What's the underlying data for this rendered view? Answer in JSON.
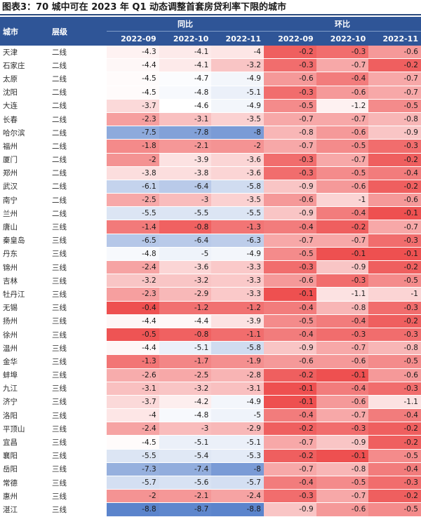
{
  "title": "图表3：70 城中可在 2023 年 Q1 动态调整首套房贷利率下限的城市",
  "headers": {
    "city": "城市",
    "tier": "层级",
    "yoy": "同比",
    "mom": "环比",
    "months": [
      "2022-09",
      "2022-10",
      "2022-11"
    ]
  },
  "colors": {
    "header_bg": "#2f5597",
    "blue_max": "#5b84cc",
    "red_max": "#ee5050"
  },
  "rows": [
    {
      "city": "天津",
      "tier": "二线",
      "yoy": [
        "-4.3",
        "-4.1",
        "-4"
      ],
      "mom": [
        "-0.2",
        "-0.3",
        "-0.6"
      ]
    },
    {
      "city": "石家庄",
      "tier": "二线",
      "yoy": [
        "-4.4",
        "-4.1",
        "-3.2"
      ],
      "mom": [
        "-0.3",
        "-0.7",
        "-0.2"
      ]
    },
    {
      "city": "太原",
      "tier": "二线",
      "yoy": [
        "-4.5",
        "-4.7",
        "-4.9"
      ],
      "mom": [
        "-0.6",
        "-0.4",
        "-0.7"
      ]
    },
    {
      "city": "沈阳",
      "tier": "二线",
      "yoy": [
        "-4.5",
        "-4.8",
        "-5.1"
      ],
      "mom": [
        "-0.3",
        "-0.6",
        "-0.7"
      ]
    },
    {
      "city": "大连",
      "tier": "二线",
      "yoy": [
        "-3.7",
        "-4.6",
        "-4.9"
      ],
      "mom": [
        "-0.5",
        "-1.2",
        "-0.5"
      ]
    },
    {
      "city": "长春",
      "tier": "二线",
      "yoy": [
        "-2.3",
        "-3.1",
        "-3.5"
      ],
      "mom": [
        "-0.7",
        "-0.7",
        "-0.8"
      ]
    },
    {
      "city": "哈尔滨",
      "tier": "二线",
      "yoy": [
        "-7.5",
        "-7.8",
        "-8"
      ],
      "mom": [
        "-0.8",
        "-0.6",
        "-0.9"
      ]
    },
    {
      "city": "福州",
      "tier": "二线",
      "yoy": [
        "-1.8",
        "-2.1",
        "-2"
      ],
      "mom": [
        "-0.7",
        "-0.5",
        "-0.3"
      ]
    },
    {
      "city": "厦门",
      "tier": "二线",
      "yoy": [
        "-2",
        "-3.9",
        "-3.6"
      ],
      "mom": [
        "-0.3",
        "-0.7",
        "-0.2"
      ]
    },
    {
      "city": "郑州",
      "tier": "二线",
      "yoy": [
        "-3.8",
        "-3.8",
        "-3.6"
      ],
      "mom": [
        "-0.3",
        "-0.5",
        "-0.4"
      ]
    },
    {
      "city": "武汉",
      "tier": "二线",
      "yoy": [
        "-6.1",
        "-6.4",
        "-5.8"
      ],
      "mom": [
        "-0.9",
        "-0.6",
        "-0.2"
      ]
    },
    {
      "city": "南宁",
      "tier": "二线",
      "yoy": [
        "-2.5",
        "-3",
        "-3.5"
      ],
      "mom": [
        "-0.6",
        "-1",
        "-0.6"
      ]
    },
    {
      "city": "兰州",
      "tier": "二线",
      "yoy": [
        "-5.5",
        "-5.5",
        "-5.5"
      ],
      "mom": [
        "-0.9",
        "-0.4",
        "-0.1"
      ]
    },
    {
      "city": "唐山",
      "tier": "三线",
      "yoy": [
        "-1.4",
        "-0.8",
        "-1.3"
      ],
      "mom": [
        "-0.4",
        "-0.2",
        "-0.7"
      ]
    },
    {
      "city": "秦皇岛",
      "tier": "三线",
      "yoy": [
        "-6.5",
        "-6.4",
        "-6.3"
      ],
      "mom": [
        "-0.7",
        "-0.7",
        "-0.3"
      ]
    },
    {
      "city": "丹东",
      "tier": "三线",
      "yoy": [
        "-4.8",
        "-5",
        "-4.9"
      ],
      "mom": [
        "-0.5",
        "-0.1",
        "-0.1"
      ]
    },
    {
      "city": "锦州",
      "tier": "三线",
      "yoy": [
        "-2.4",
        "-3.6",
        "-3.3"
      ],
      "mom": [
        "-0.3",
        "-0.9",
        "-0.2"
      ]
    },
    {
      "city": "吉林",
      "tier": "三线",
      "yoy": [
        "-3.2",
        "-3.2",
        "-3.3"
      ],
      "mom": [
        "-0.6",
        "-0.3",
        "-0.5"
      ]
    },
    {
      "city": "牡丹江",
      "tier": "三线",
      "yoy": [
        "-2.3",
        "-2.9",
        "-3.3"
      ],
      "mom": [
        "-0.1",
        "-1.1",
        "-1"
      ]
    },
    {
      "city": "无锡",
      "tier": "三线",
      "yoy": [
        "-0.4",
        "-1.2",
        "-1.2"
      ],
      "mom": [
        "-0.4",
        "-0.8",
        "-0.3"
      ]
    },
    {
      "city": "扬州",
      "tier": "三线",
      "yoy": [
        "-4.4",
        "-4.4",
        "-3.9"
      ],
      "mom": [
        "-0.5",
        "-0.4",
        "-0.2"
      ]
    },
    {
      "city": "徐州",
      "tier": "三线",
      "yoy": [
        "-0.5",
        "-0.8",
        "-1.1"
      ],
      "mom": [
        "-0.4",
        "-0.3",
        "-0.3"
      ]
    },
    {
      "city": "温州",
      "tier": "三线",
      "yoy": [
        "-4.4",
        "-5.1",
        "-5.8"
      ],
      "mom": [
        "-0.9",
        "-0.7",
        "-0.8"
      ]
    },
    {
      "city": "金华",
      "tier": "三线",
      "yoy": [
        "-1.3",
        "-1.7",
        "-1.9"
      ],
      "mom": [
        "-0.6",
        "-0.6",
        "-0.5"
      ]
    },
    {
      "city": "蚌埠",
      "tier": "三线",
      "yoy": [
        "-2.6",
        "-2.5",
        "-2.8"
      ],
      "mom": [
        "-0.2",
        "-0.1",
        "-0.6"
      ]
    },
    {
      "city": "九江",
      "tier": "三线",
      "yoy": [
        "-3.1",
        "-3.2",
        "-3.1"
      ],
      "mom": [
        "-0.1",
        "-0.4",
        "-0.3"
      ]
    },
    {
      "city": "济宁",
      "tier": "三线",
      "yoy": [
        "-3.7",
        "-4.2",
        "-4.9"
      ],
      "mom": [
        "-0.1",
        "-0.6",
        "-1.1"
      ]
    },
    {
      "city": "洛阳",
      "tier": "三线",
      "yoy": [
        "-4",
        "-4.8",
        "-5"
      ],
      "mom": [
        "-0.4",
        "-0.7",
        "-0.4"
      ]
    },
    {
      "city": "平顶山",
      "tier": "三线",
      "yoy": [
        "-2.4",
        "-3",
        "-2.9"
      ],
      "mom": [
        "-0.2",
        "-0.3",
        "-0.2"
      ]
    },
    {
      "city": "宜昌",
      "tier": "三线",
      "yoy": [
        "-4.5",
        "-5.1",
        "-5.1"
      ],
      "mom": [
        "-0.7",
        "-0.9",
        "-0.2"
      ]
    },
    {
      "city": "襄阳",
      "tier": "三线",
      "yoy": [
        "-5.5",
        "-5.4",
        "-5.3"
      ],
      "mom": [
        "-0.2",
        "-0.1",
        "-0.5"
      ]
    },
    {
      "city": "岳阳",
      "tier": "三线",
      "yoy": [
        "-7.3",
        "-7.4",
        "-8"
      ],
      "mom": [
        "-0.7",
        "-0.8",
        "-0.4"
      ]
    },
    {
      "city": "常德",
      "tier": "三线",
      "yoy": [
        "-5.7",
        "-5.6",
        "-5.7"
      ],
      "mom": [
        "-0.4",
        "-0.5",
        "-0.3"
      ]
    },
    {
      "city": "惠州",
      "tier": "三线",
      "yoy": [
        "-2",
        "-2.1",
        "-2.4"
      ],
      "mom": [
        "-0.3",
        "-0.7",
        "-0.2"
      ]
    },
    {
      "city": "湛江",
      "tier": "三线",
      "yoy": [
        "-8.8",
        "-8.7",
        "-8.8"
      ],
      "mom": [
        "-0.9",
        "-0.6",
        "-0.5"
      ]
    }
  ]
}
